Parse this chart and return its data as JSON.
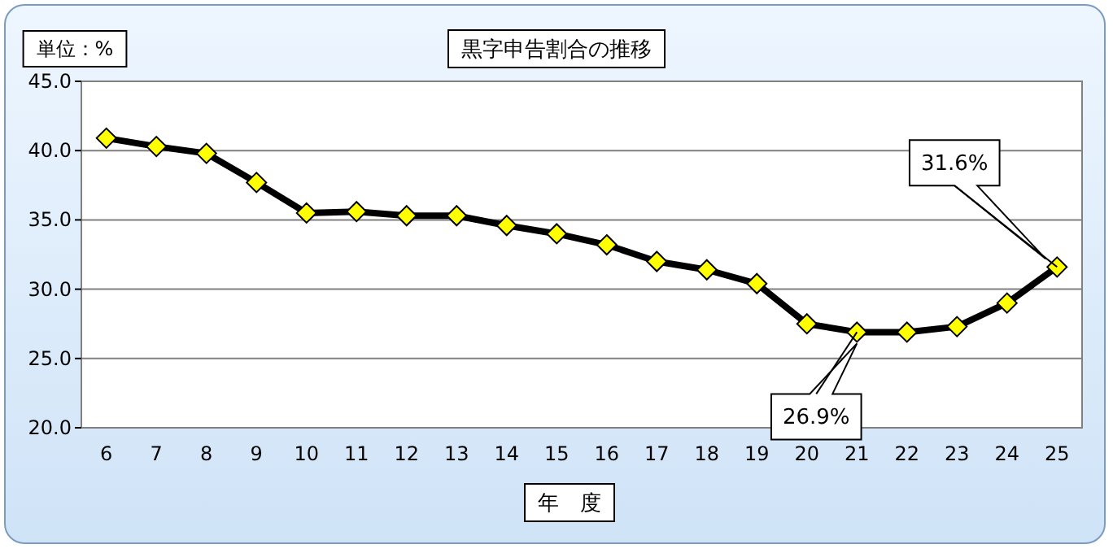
{
  "chart_data": {
    "type": "line",
    "title": "黒字申告割合の推移",
    "ylabel": "単位：%",
    "xlabel": "年　度",
    "categories": [
      "6",
      "7",
      "8",
      "9",
      "10",
      "11",
      "12",
      "13",
      "14",
      "15",
      "16",
      "17",
      "18",
      "19",
      "20",
      "21",
      "22",
      "23",
      "24",
      "25"
    ],
    "series": [
      {
        "color": "#000000",
        "values": [
          40.9,
          40.3,
          39.8,
          37.7,
          35.5,
          35.6,
          35.3,
          35.3,
          34.6,
          34.0,
          33.2,
          32.0,
          31.4,
          30.4,
          27.5,
          26.9,
          26.9,
          27.3,
          29.0,
          31.6
        ]
      }
    ],
    "ylim": [
      20,
      45
    ],
    "yticks": [
      {
        "value": 20,
        "label": "20.0"
      },
      {
        "value": 25,
        "label": "25.0"
      },
      {
        "value": 30,
        "label": "30.0"
      },
      {
        "value": 35,
        "label": "35.0"
      },
      {
        "value": 40,
        "label": "40.0"
      },
      {
        "value": 45,
        "label": "45.0"
      }
    ],
    "grid": "y",
    "marker": "diamond",
    "line_style": "solid",
    "annotations": [
      {
        "text": "26.9%",
        "x": "21",
        "y": 26.9
      },
      {
        "text": "31.6%",
        "x": "25",
        "y": 31.6
      }
    ]
  }
}
